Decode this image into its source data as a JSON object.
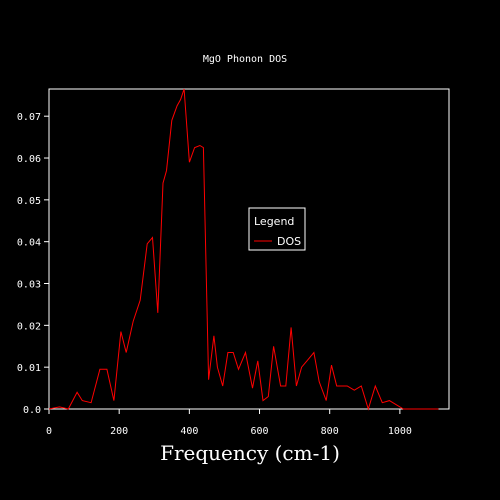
{
  "chart_data": {
    "type": "line",
    "title": "MgO Phonon DOS",
    "xlabel": "Frequency (cm-1)",
    "ylabel": "",
    "xlim": [
      0,
      1140
    ],
    "ylim": [
      0,
      0.0765
    ],
    "xticks": [
      0,
      200,
      400,
      600,
      800,
      1000
    ],
    "xtick_labels": [
      "0",
      "200",
      "400",
      "600",
      "800",
      "1000"
    ],
    "yticks": [
      0.0,
      0.01,
      0.02,
      0.03,
      0.04,
      0.05,
      0.06,
      0.07
    ],
    "ytick_labels": [
      "0.0",
      "0.01",
      "0.02",
      "0.03",
      "0.04",
      "0.05",
      "0.06",
      "0.07"
    ],
    "grid": false,
    "legend": {
      "title": "Legend",
      "placement": "center-right"
    },
    "series": [
      {
        "name": "DOS",
        "color": "#ff0000",
        "x": [
          0,
          30,
          55,
          80,
          95,
          120,
          145,
          165,
          185,
          205,
          220,
          240,
          260,
          280,
          295,
          310,
          325,
          335,
          350,
          365,
          375,
          385,
          400,
          415,
          430,
          440,
          455,
          470,
          480,
          495,
          510,
          525,
          540,
          560,
          580,
          595,
          610,
          625,
          640,
          660,
          675,
          690,
          705,
          720,
          735,
          755,
          770,
          790,
          805,
          820,
          835,
          850,
          870,
          890,
          910,
          930,
          950,
          970,
          990,
          1010,
          1030,
          1050,
          1070,
          1090,
          1110
        ],
        "y": [
          0.0,
          0.0005,
          0.0,
          0.004,
          0.002,
          0.0015,
          0.0095,
          0.0095,
          0.002,
          0.0185,
          0.0135,
          0.021,
          0.026,
          0.0395,
          0.041,
          0.023,
          0.054,
          0.057,
          0.069,
          0.0725,
          0.074,
          0.0765,
          0.059,
          0.0625,
          0.063,
          0.0625,
          0.007,
          0.0175,
          0.01,
          0.0055,
          0.0135,
          0.0135,
          0.0095,
          0.0135,
          0.005,
          0.0115,
          0.002,
          0.003,
          0.015,
          0.0055,
          0.0055,
          0.0195,
          0.0055,
          0.01,
          0.0115,
          0.0135,
          0.0065,
          0.002,
          0.0105,
          0.0055,
          0.0055,
          0.0055,
          0.0045,
          0.0055,
          0.0,
          0.0055,
          0.0015,
          0.002,
          0.001,
          0.0,
          0.0,
          0.0,
          0.0,
          0.0,
          0.0
        ]
      }
    ]
  }
}
